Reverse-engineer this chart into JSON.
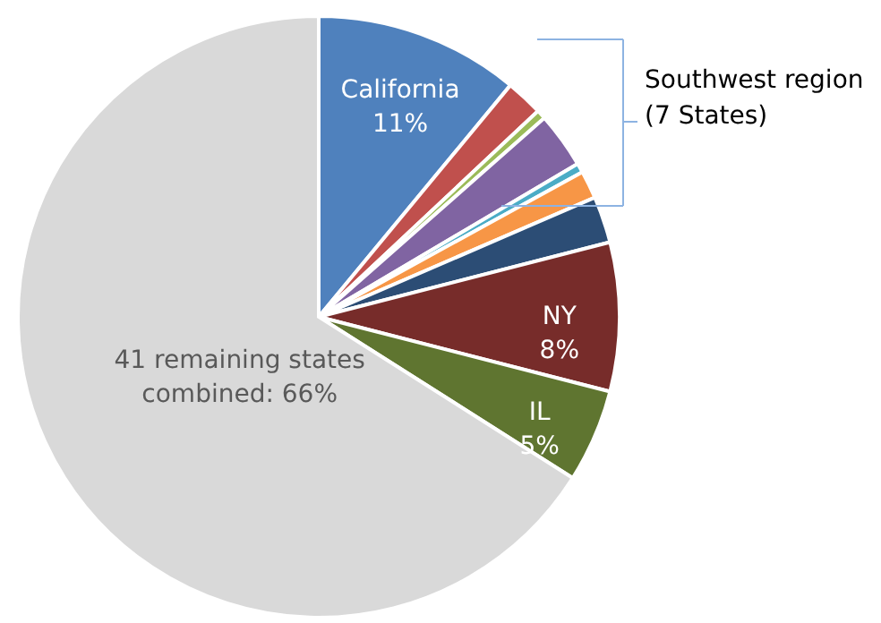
{
  "chart_data": {
    "type": "pie",
    "categories": [
      "California",
      null,
      null,
      null,
      null,
      null,
      null,
      "NY",
      "IL",
      "41 remaining states combined"
    ],
    "values": [
      11,
      2,
      0.5,
      3,
      0.5,
      1.5,
      2.5,
      8,
      5,
      66
    ],
    "value_labels": [
      "11%",
      null,
      null,
      null,
      null,
      null,
      null,
      "8%",
      "5%",
      "66%"
    ],
    "colors": [
      "#4f81bd",
      "#c0504d",
      "#9bbb59",
      "#8064a2",
      "#4bacc6",
      "#f79646",
      "#2c4d75",
      "#772c2a",
      "#5f7530",
      "#d9d9d9"
    ],
    "annotations": [
      "Southwest region (7 States)"
    ]
  }
}
